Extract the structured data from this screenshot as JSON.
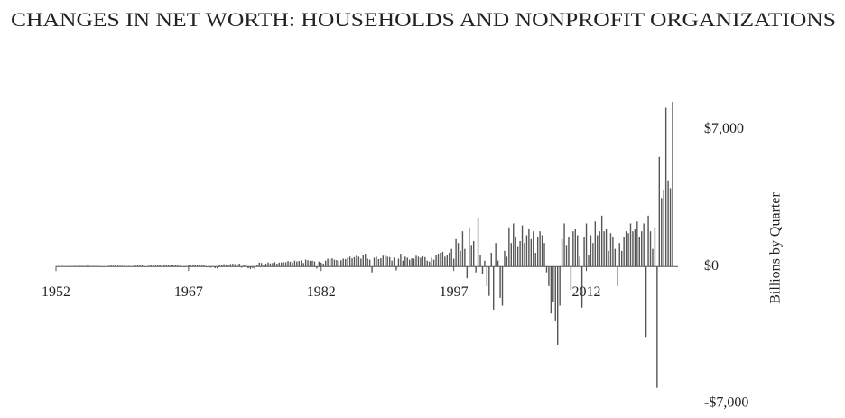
{
  "chart_data": {
    "type": "bar",
    "title": "CHANGES IN NET WORTH: HOUSEHOLDS AND NONPROFIT ORGANIZATIONS",
    "y_label": "Billions by Quarter",
    "color": "#555555",
    "ylim": [
      -7000,
      9000
    ],
    "yticks": [
      {
        "value": -7000,
        "label": "-$7,000"
      },
      {
        "value": 0,
        "label": "$0"
      },
      {
        "value": 7000,
        "label": "$7,000"
      }
    ],
    "categories": [
      "1952",
      null,
      null,
      null,
      null,
      null,
      null,
      null,
      null,
      null,
      null,
      null,
      null,
      null,
      null,
      null,
      null,
      null,
      null,
      null,
      null,
      null,
      null,
      null,
      null,
      null,
      null,
      null,
      null,
      null,
      null,
      null,
      null,
      null,
      null,
      null,
      null,
      null,
      null,
      null,
      null,
      null,
      null,
      null,
      null,
      null,
      null,
      null,
      null,
      null,
      null,
      null,
      null,
      null,
      null,
      null,
      null,
      null,
      null,
      null,
      "1967",
      null,
      null,
      null,
      null,
      null,
      null,
      null,
      null,
      null,
      null,
      null,
      null,
      null,
      null,
      null,
      null,
      null,
      null,
      null,
      null,
      null,
      null,
      null,
      null,
      null,
      null,
      null,
      null,
      null,
      null,
      null,
      null,
      null,
      null,
      null,
      null,
      null,
      null,
      null,
      null,
      null,
      null,
      null,
      null,
      null,
      null,
      null,
      null,
      null,
      null,
      null,
      null,
      null,
      null,
      null,
      null,
      null,
      null,
      null,
      "1982",
      null,
      null,
      null,
      null,
      null,
      null,
      null,
      null,
      null,
      null,
      null,
      null,
      null,
      null,
      null,
      null,
      null,
      null,
      null,
      null,
      null,
      null,
      null,
      null,
      null,
      null,
      null,
      null,
      null,
      null,
      null,
      null,
      null,
      null,
      null,
      null,
      null,
      null,
      null,
      null,
      null,
      null,
      null,
      null,
      null,
      null,
      null,
      null,
      null,
      null,
      null,
      null,
      null,
      null,
      null,
      null,
      null,
      null,
      null,
      "1997",
      null,
      null,
      null,
      null,
      null,
      null,
      null,
      null,
      null,
      null,
      null,
      null,
      null,
      null,
      null,
      null,
      null,
      null,
      null,
      null,
      null,
      null,
      null,
      null,
      null,
      null,
      null,
      null,
      null,
      null,
      null,
      null,
      null,
      null,
      null,
      null,
      null,
      null,
      null,
      null,
      null,
      null,
      null,
      null,
      null,
      null,
      null,
      null,
      null,
      null,
      null,
      null,
      null,
      null,
      null,
      null,
      null,
      null,
      null,
      "2012",
      null,
      null,
      null,
      null,
      null,
      null,
      null,
      null,
      null,
      null,
      null,
      null,
      null,
      null,
      null,
      null,
      null,
      null,
      null,
      null,
      null,
      null,
      null,
      null,
      null,
      null,
      null,
      null,
      null,
      null,
      null,
      null,
      null,
      null,
      null,
      null,
      null,
      null,
      null
    ],
    "values": [
      20,
      25,
      18,
      30,
      15,
      22,
      28,
      20,
      30,
      35,
      25,
      40,
      35,
      30,
      42,
      38,
      28,
      35,
      30,
      25,
      20,
      -10,
      15,
      -20,
      40,
      50,
      45,
      55,
      45,
      40,
      38,
      35,
      25,
      30,
      20,
      35,
      55,
      60,
      50,
      65,
      -30,
      -20,
      40,
      55,
      60,
      55,
      50,
      70,
      65,
      60,
      70,
      75,
      70,
      65,
      80,
      75,
      40,
      -20,
      -35,
      30,
      90,
      100,
      85,
      70,
      80,
      110,
      95,
      60,
      -40,
      30,
      -60,
      20,
      -80,
      -100,
      60,
      90,
      120,
      80,
      100,
      130,
      140,
      120,
      110,
      150,
      -60,
      80,
      120,
      -90,
      -120,
      -80,
      -150,
      90,
      200,
      180,
      60,
      150,
      210,
      160,
      180,
      230,
      150,
      200,
      210,
      220,
      220,
      280,
      250,
      190,
      300,
      260,
      280,
      310,
      180,
      350,
      320,
      280,
      300,
      260,
      -100,
      250,
      200,
      150,
      300,
      400,
      380,
      420,
      350,
      330,
      280,
      320,
      400,
      380,
      450,
      500,
      420,
      480,
      550,
      500,
      400,
      600,
      650,
      400,
      350,
      -300,
      450,
      500,
      380,
      420,
      550,
      600,
      500,
      480,
      300,
      450,
      -200,
      400,
      650,
      300,
      500,
      450,
      350,
      420,
      400,
      550,
      500,
      450,
      520,
      480,
      300,
      250,
      450,
      350,
      600,
      650,
      700,
      750,
      500,
      600,
      700,
      900,
      400,
      1400,
      1200,
      800,
      1800,
      900,
      -600,
      2000,
      1100,
      1300,
      -300,
      2500,
      600,
      -400,
      300,
      -1000,
      -1500,
      700,
      -2200,
      1200,
      300,
      -1600,
      -2000,
      800,
      500,
      2000,
      1200,
      2200,
      1500,
      1000,
      1300,
      2100,
      1200,
      1600,
      1900,
      1400,
      1800,
      700,
      1500,
      1800,
      1600,
      1200,
      -300,
      -1000,
      -2400,
      -1800,
      -2800,
      -4000,
      -2000,
      1400,
      2200,
      1100,
      1500,
      -1200,
      1800,
      1900,
      1600,
      500,
      -2100,
      1500,
      2200,
      600,
      1600,
      1200,
      2300,
      1600,
      1800,
      2600,
      1800,
      1900,
      800,
      1700,
      1500,
      900,
      -1000,
      1200,
      800,
      1500,
      1800,
      1700,
      2200,
      1800,
      1900,
      2300,
      1500,
      1800,
      2200,
      -3600,
      2600,
      1800,
      900,
      2000,
      -6200,
      5600,
      3500,
      3900,
      8100,
      4400,
      4000,
      8400
    ]
  }
}
